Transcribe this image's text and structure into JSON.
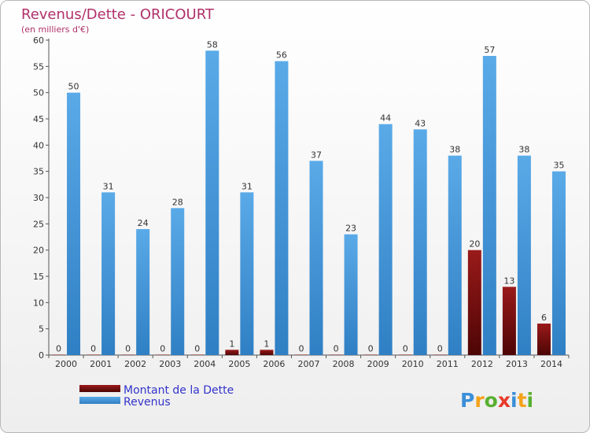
{
  "chart_data": {
    "type": "bar",
    "title": "Revenus/Dette - ORICOURT",
    "subtitle": "(en milliers d'€)",
    "categories": [
      "2000",
      "2001",
      "2002",
      "2003",
      "2004",
      "2005",
      "2006",
      "2007",
      "2008",
      "2009",
      "2010",
      "2011",
      "2012",
      "2013",
      "2014"
    ],
    "series": [
      {
        "name": "Montant de la Dette",
        "color": "#7a0a0a",
        "values": [
          0,
          0,
          0,
          0,
          0,
          1,
          1,
          0,
          0,
          0,
          0,
          0,
          20,
          13,
          6
        ]
      },
      {
        "name": "Revenus",
        "color": "#3d93db",
        "values": [
          50,
          31,
          24,
          28,
          58,
          31,
          56,
          37,
          23,
          44,
          43,
          38,
          57,
          38,
          35
        ]
      }
    ],
    "ylim": [
      0,
      60
    ],
    "yticks": [
      0,
      5,
      10,
      15,
      20,
      25,
      30,
      35,
      40,
      45,
      50,
      55,
      60
    ],
    "grid": false,
    "legend": "bottom-left",
    "logo": "Proxiti"
  }
}
